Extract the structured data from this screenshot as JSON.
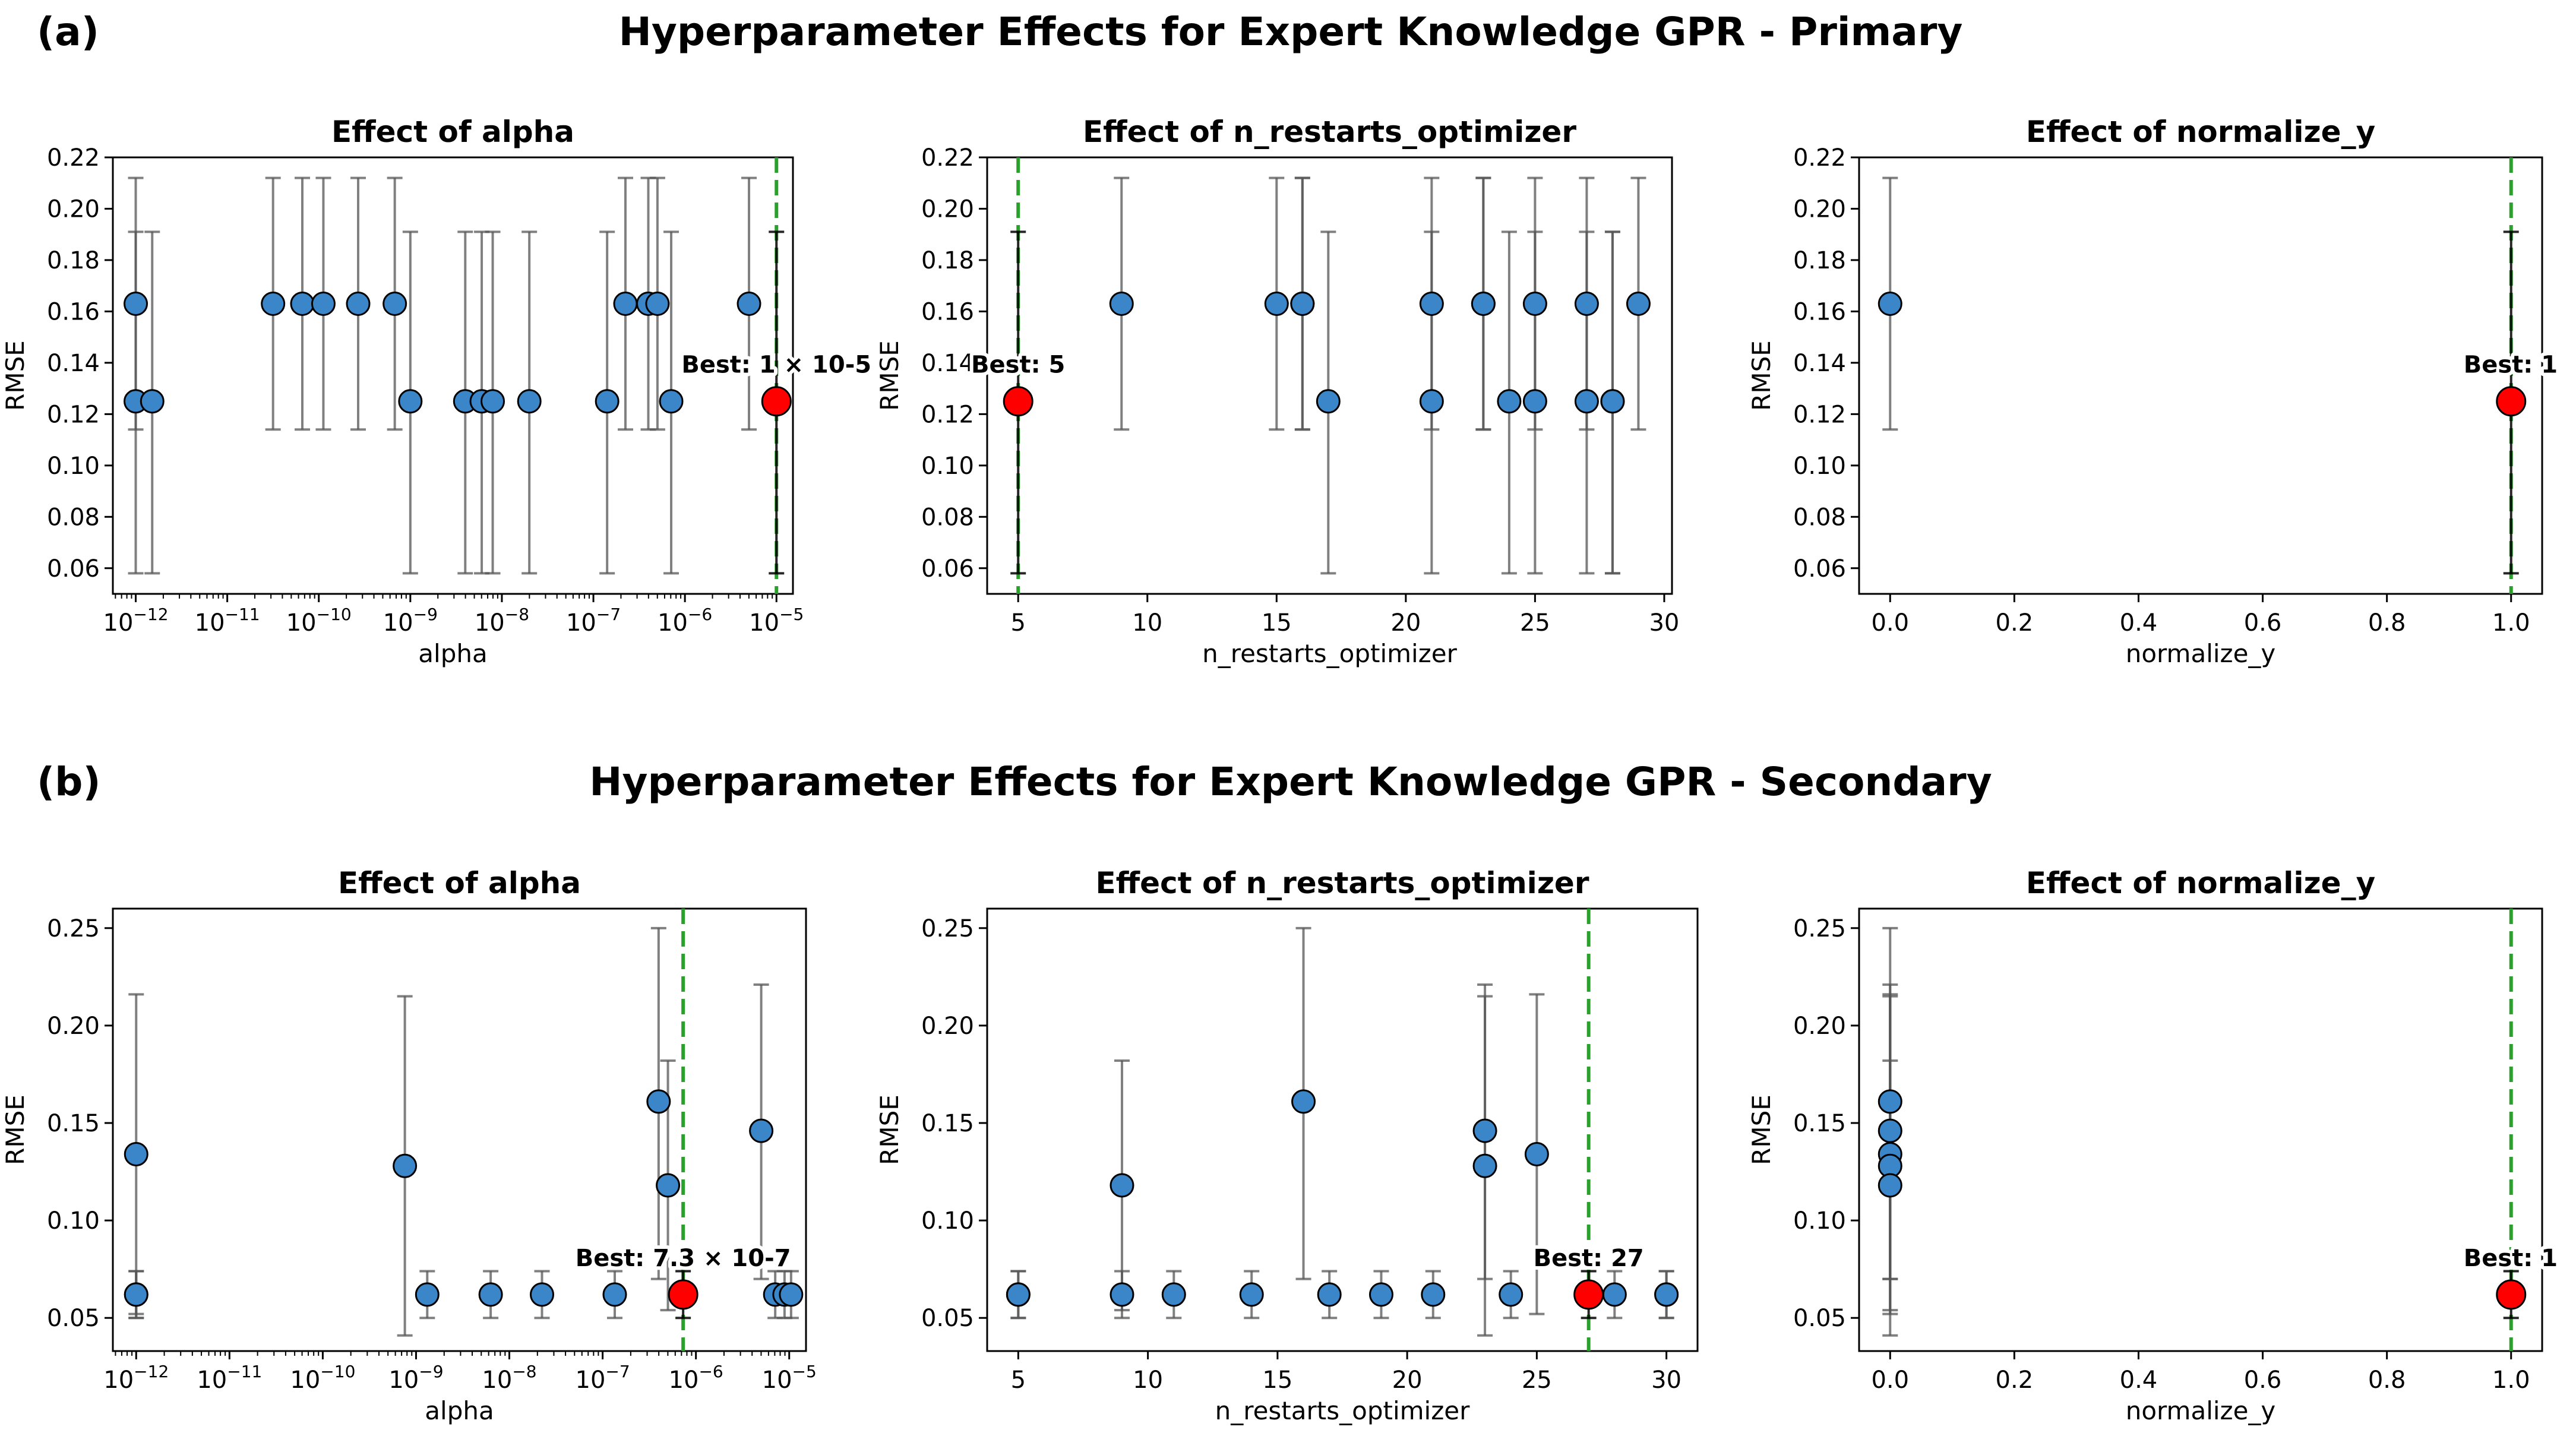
{
  "figure": {
    "rows": [
      {
        "panel_label": "(a)",
        "title": "Hyperparameter Effects for Expert Knowledge GPR - Primary"
      },
      {
        "panel_label": "(b)",
        "title": "Hyperparameter Effects for Expert Knowledge GPR - Secondary"
      }
    ]
  },
  "colors": {
    "point": "#3a86c8",
    "best": "#ff0000",
    "best_line": "#2ca02c",
    "error_bar": "#555555"
  },
  "chart_data": [
    {
      "type": "scatter",
      "id": "a-alpha",
      "title": "Effect of alpha",
      "xlabel": "alpha",
      "ylabel": "RMSE",
      "xscale": "log",
      "xlim": [
        -12.25,
        -4.82
      ],
      "ylim": [
        0.05,
        0.22
      ],
      "xticks": [
        -12,
        -11,
        -10,
        -9,
        -8,
        -7,
        -6,
        -5
      ],
      "xtick_labels": [
        "10^-12",
        "10^-11",
        "10^-10",
        "10^-9",
        "10^-8",
        "10^-7",
        "10^-6",
        "10^-5"
      ],
      "yticks": [
        0.06,
        0.08,
        0.1,
        0.12,
        0.14,
        0.16,
        0.18,
        0.2,
        0.22
      ],
      "ytick_labels": [
        "0.06",
        "0.08",
        "0.10",
        "0.12",
        "0.14",
        "0.16",
        "0.18",
        "0.20",
        "0.22"
      ],
      "points": [
        {
          "x": -12.0,
          "y": 0.163,
          "lo": 0.114,
          "hi": 0.212
        },
        {
          "x": -12.0,
          "y": 0.125,
          "lo": 0.058,
          "hi": 0.191
        },
        {
          "x": -11.82,
          "y": 0.125,
          "lo": 0.058,
          "hi": 0.191
        },
        {
          "x": -10.5,
          "y": 0.163,
          "lo": 0.114,
          "hi": 0.212
        },
        {
          "x": -10.18,
          "y": 0.163,
          "lo": 0.114,
          "hi": 0.212
        },
        {
          "x": -9.95,
          "y": 0.163,
          "lo": 0.114,
          "hi": 0.212
        },
        {
          "x": -9.57,
          "y": 0.163,
          "lo": 0.114,
          "hi": 0.212
        },
        {
          "x": -9.17,
          "y": 0.163,
          "lo": 0.114,
          "hi": 0.212
        },
        {
          "x": -9.0,
          "y": 0.125,
          "lo": 0.058,
          "hi": 0.191
        },
        {
          "x": -8.4,
          "y": 0.125,
          "lo": 0.058,
          "hi": 0.191
        },
        {
          "x": -8.22,
          "y": 0.125,
          "lo": 0.058,
          "hi": 0.191
        },
        {
          "x": -8.1,
          "y": 0.125,
          "lo": 0.058,
          "hi": 0.191
        },
        {
          "x": -7.7,
          "y": 0.125,
          "lo": 0.058,
          "hi": 0.191
        },
        {
          "x": -6.85,
          "y": 0.125,
          "lo": 0.058,
          "hi": 0.191
        },
        {
          "x": -6.65,
          "y": 0.163,
          "lo": 0.114,
          "hi": 0.212
        },
        {
          "x": -6.4,
          "y": 0.163,
          "lo": 0.114,
          "hi": 0.212
        },
        {
          "x": -6.3,
          "y": 0.163,
          "lo": 0.114,
          "hi": 0.212
        },
        {
          "x": -6.15,
          "y": 0.125,
          "lo": 0.058,
          "hi": 0.191
        },
        {
          "x": -5.3,
          "y": 0.163,
          "lo": 0.114,
          "hi": 0.212
        }
      ],
      "best": {
        "x": -5.0,
        "y": 0.125,
        "lo": 0.058,
        "hi": 0.191,
        "label": "Best: 1 × 10-5"
      },
      "best_label_anchor": "middle"
    },
    {
      "type": "scatter",
      "id": "a-restarts",
      "title": "Effect of n_restarts_optimizer",
      "xlabel": "n_restarts_optimizer",
      "ylabel": "RMSE",
      "xscale": "linear",
      "xlim": [
        3.8,
        30.3
      ],
      "ylim": [
        0.05,
        0.22
      ],
      "xticks": [
        5,
        10,
        15,
        20,
        25,
        30
      ],
      "xtick_labels": [
        "5",
        "10",
        "15",
        "20",
        "25",
        "30"
      ],
      "yticks": [
        0.06,
        0.08,
        0.1,
        0.12,
        0.14,
        0.16,
        0.18,
        0.2,
        0.22
      ],
      "ytick_labels": [
        "0.06",
        "0.08",
        "0.10",
        "0.12",
        "0.14",
        "0.16",
        "0.18",
        "0.20",
        "0.22"
      ],
      "points": [
        {
          "x": 9,
          "y": 0.163,
          "lo": 0.114,
          "hi": 0.212
        },
        {
          "x": 15,
          "y": 0.163,
          "lo": 0.114,
          "hi": 0.212
        },
        {
          "x": 16,
          "y": 0.163,
          "lo": 0.114,
          "hi": 0.212
        },
        {
          "x": 16,
          "y": 0.163,
          "lo": 0.114,
          "hi": 0.212
        },
        {
          "x": 17,
          "y": 0.125,
          "lo": 0.058,
          "hi": 0.191
        },
        {
          "x": 21,
          "y": 0.163,
          "lo": 0.114,
          "hi": 0.212
        },
        {
          "x": 21,
          "y": 0.125,
          "lo": 0.058,
          "hi": 0.191
        },
        {
          "x": 23,
          "y": 0.163,
          "lo": 0.114,
          "hi": 0.212
        },
        {
          "x": 23,
          "y": 0.163,
          "lo": 0.114,
          "hi": 0.212
        },
        {
          "x": 24,
          "y": 0.125,
          "lo": 0.058,
          "hi": 0.191
        },
        {
          "x": 25,
          "y": 0.163,
          "lo": 0.114,
          "hi": 0.212
        },
        {
          "x": 25,
          "y": 0.125,
          "lo": 0.058,
          "hi": 0.191
        },
        {
          "x": 27,
          "y": 0.163,
          "lo": 0.114,
          "hi": 0.212
        },
        {
          "x": 27,
          "y": 0.125,
          "lo": 0.058,
          "hi": 0.191
        },
        {
          "x": 28,
          "y": 0.125,
          "lo": 0.058,
          "hi": 0.191
        },
        {
          "x": 28,
          "y": 0.125,
          "lo": 0.058,
          "hi": 0.191
        },
        {
          "x": 29,
          "y": 0.163,
          "lo": 0.114,
          "hi": 0.212
        }
      ],
      "best": {
        "x": 5,
        "y": 0.125,
        "lo": 0.058,
        "hi": 0.191,
        "label": "Best: 5"
      },
      "best_label_anchor": "middle"
    },
    {
      "type": "scatter",
      "id": "a-normalize",
      "title": "Effect of normalize_y",
      "xlabel": "normalize_y",
      "ylabel": "RMSE",
      "xscale": "linear",
      "xlim": [
        -0.05,
        1.05
      ],
      "ylim": [
        0.05,
        0.22
      ],
      "xticks": [
        0.0,
        0.2,
        0.4,
        0.6,
        0.8,
        1.0
      ],
      "xtick_labels": [
        "0.0",
        "0.2",
        "0.4",
        "0.6",
        "0.8",
        "1.0"
      ],
      "yticks": [
        0.06,
        0.08,
        0.1,
        0.12,
        0.14,
        0.16,
        0.18,
        0.2,
        0.22
      ],
      "ytick_labels": [
        "0.06",
        "0.08",
        "0.10",
        "0.12",
        "0.14",
        "0.16",
        "0.18",
        "0.20",
        "0.22"
      ],
      "points": [
        {
          "x": 0.0,
          "y": 0.163,
          "lo": 0.114,
          "hi": 0.212
        }
      ],
      "best": {
        "x": 1.0,
        "y": 0.125,
        "lo": 0.058,
        "hi": 0.191,
        "label": "Best: 1"
      },
      "best_label_anchor": "start"
    },
    {
      "type": "scatter",
      "id": "b-alpha",
      "title": "Effect of alpha",
      "xlabel": "alpha",
      "ylabel": "RMSE",
      "xscale": "log",
      "xlim": [
        -12.25,
        -4.82
      ],
      "ylim": [
        0.033,
        0.26
      ],
      "xticks": [
        -12,
        -11,
        -10,
        -9,
        -8,
        -7,
        -6,
        -5
      ],
      "xtick_labels": [
        "10^-12",
        "10^-11",
        "10^-10",
        "10^-9",
        "10^-8",
        "10^-7",
        "10^-6",
        "10^-5"
      ],
      "yticks": [
        0.05,
        0.1,
        0.15,
        0.2,
        0.25
      ],
      "ytick_labels": [
        "0.05",
        "0.10",
        "0.15",
        "0.20",
        "0.25"
      ],
      "points": [
        {
          "x": -12.0,
          "y": 0.062,
          "lo": 0.05,
          "hi": 0.074
        },
        {
          "x": -12.0,
          "y": 0.062,
          "lo": 0.05,
          "hi": 0.074
        },
        {
          "x": -12.0,
          "y": 0.134,
          "lo": 0.052,
          "hi": 0.216
        },
        {
          "x": -9.12,
          "y": 0.128,
          "lo": 0.041,
          "hi": 0.215
        },
        {
          "x": -8.88,
          "y": 0.062,
          "lo": 0.05,
          "hi": 0.074
        },
        {
          "x": -8.2,
          "y": 0.062,
          "lo": 0.05,
          "hi": 0.074
        },
        {
          "x": -7.65,
          "y": 0.062,
          "lo": 0.05,
          "hi": 0.074
        },
        {
          "x": -6.87,
          "y": 0.062,
          "lo": 0.05,
          "hi": 0.074
        },
        {
          "x": -6.4,
          "y": 0.161,
          "lo": 0.07,
          "hi": 0.25
        },
        {
          "x": -6.3,
          "y": 0.118,
          "lo": 0.054,
          "hi": 0.182
        },
        {
          "x": -5.3,
          "y": 0.146,
          "lo": 0.07,
          "hi": 0.221
        },
        {
          "x": -5.15,
          "y": 0.062,
          "lo": 0.05,
          "hi": 0.074
        },
        {
          "x": -5.05,
          "y": 0.062,
          "lo": 0.05,
          "hi": 0.074
        },
        {
          "x": -4.98,
          "y": 0.062,
          "lo": 0.05,
          "hi": 0.074
        }
      ],
      "best": {
        "x": -6.137,
        "y": 0.062,
        "lo": 0.05,
        "hi": 0.074,
        "label": "Best: 7.3 × 10-7"
      },
      "best_label_anchor": "middle"
    },
    {
      "type": "scatter",
      "id": "b-restarts",
      "title": "Effect of n_restarts_optimizer",
      "xlabel": "n_restarts_optimizer",
      "ylabel": "RMSE",
      "xscale": "linear",
      "xlim": [
        3.8,
        31.2
      ],
      "ylim": [
        0.033,
        0.26
      ],
      "xticks": [
        5,
        10,
        15,
        20,
        25,
        30
      ],
      "xtick_labels": [
        "5",
        "10",
        "15",
        "20",
        "25",
        "30"
      ],
      "yticks": [
        0.05,
        0.1,
        0.15,
        0.2,
        0.25
      ],
      "ytick_labels": [
        "0.05",
        "0.10",
        "0.15",
        "0.20",
        "0.25"
      ],
      "points": [
        {
          "x": 5,
          "y": 0.062,
          "lo": 0.05,
          "hi": 0.074
        },
        {
          "x": 5,
          "y": 0.062,
          "lo": 0.05,
          "hi": 0.074
        },
        {
          "x": 9,
          "y": 0.118,
          "lo": 0.054,
          "hi": 0.182
        },
        {
          "x": 9,
          "y": 0.062,
          "lo": 0.05,
          "hi": 0.074
        },
        {
          "x": 11,
          "y": 0.062,
          "lo": 0.05,
          "hi": 0.074
        },
        {
          "x": 14,
          "y": 0.062,
          "lo": 0.05,
          "hi": 0.074
        },
        {
          "x": 16,
          "y": 0.161,
          "lo": 0.07,
          "hi": 0.25
        },
        {
          "x": 17,
          "y": 0.062,
          "lo": 0.05,
          "hi": 0.074
        },
        {
          "x": 19,
          "y": 0.062,
          "lo": 0.05,
          "hi": 0.074
        },
        {
          "x": 21,
          "y": 0.062,
          "lo": 0.05,
          "hi": 0.074
        },
        {
          "x": 23,
          "y": 0.146,
          "lo": 0.07,
          "hi": 0.221
        },
        {
          "x": 23,
          "y": 0.128,
          "lo": 0.041,
          "hi": 0.215
        },
        {
          "x": 24,
          "y": 0.062,
          "lo": 0.05,
          "hi": 0.074
        },
        {
          "x": 25,
          "y": 0.134,
          "lo": 0.052,
          "hi": 0.216
        },
        {
          "x": 28,
          "y": 0.062,
          "lo": 0.05,
          "hi": 0.074
        },
        {
          "x": 30,
          "y": 0.062,
          "lo": 0.05,
          "hi": 0.074
        },
        {
          "x": 30,
          "y": 0.062,
          "lo": 0.05,
          "hi": 0.074
        }
      ],
      "best": {
        "x": 27,
        "y": 0.062,
        "lo": 0.05,
        "hi": 0.074,
        "label": "Best: 27"
      },
      "best_label_anchor": "middle"
    },
    {
      "type": "scatter",
      "id": "b-normalize",
      "title": "Effect of normalize_y",
      "xlabel": "normalize_y",
      "ylabel": "RMSE",
      "xscale": "linear",
      "xlim": [
        -0.05,
        1.05
      ],
      "ylim": [
        0.033,
        0.26
      ],
      "xticks": [
        0.0,
        0.2,
        0.4,
        0.6,
        0.8,
        1.0
      ],
      "xtick_labels": [
        "0.0",
        "0.2",
        "0.4",
        "0.6",
        "0.8",
        "1.0"
      ],
      "yticks": [
        0.05,
        0.1,
        0.15,
        0.2,
        0.25
      ],
      "ytick_labels": [
        "0.05",
        "0.10",
        "0.15",
        "0.20",
        "0.25"
      ],
      "points": [
        {
          "x": 0.0,
          "y": 0.161,
          "lo": 0.07,
          "hi": 0.25
        },
        {
          "x": 0.0,
          "y": 0.146,
          "lo": 0.07,
          "hi": 0.221
        },
        {
          "x": 0.0,
          "y": 0.134,
          "lo": 0.052,
          "hi": 0.216
        },
        {
          "x": 0.0,
          "y": 0.128,
          "lo": 0.041,
          "hi": 0.215
        },
        {
          "x": 0.0,
          "y": 0.118,
          "lo": 0.054,
          "hi": 0.182
        }
      ],
      "best": {
        "x": 1.0,
        "y": 0.062,
        "lo": 0.05,
        "hi": 0.074,
        "label": "Best: 1"
      },
      "best_label_anchor": "start"
    }
  ]
}
